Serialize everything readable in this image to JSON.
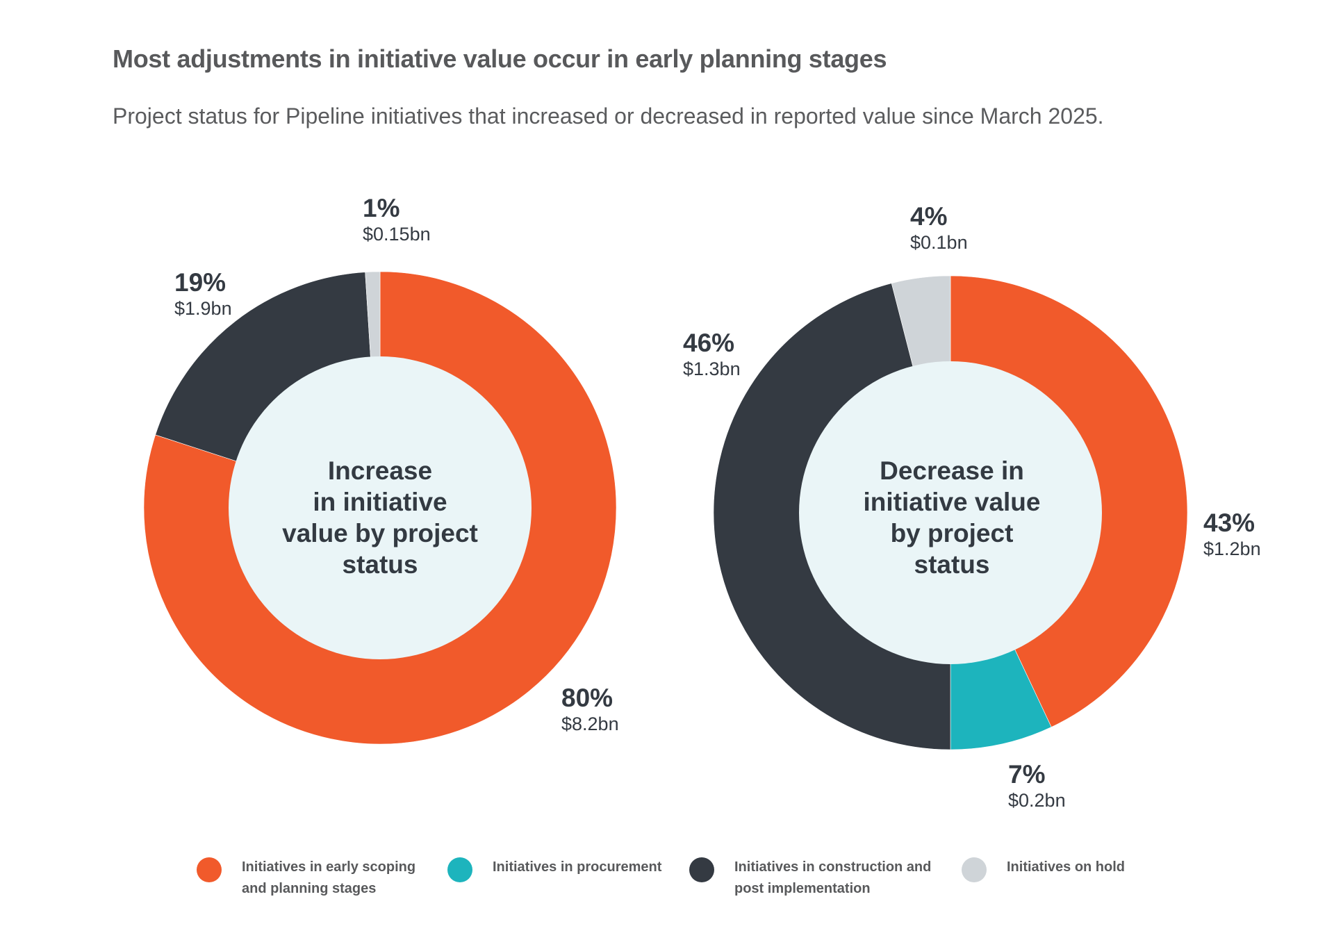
{
  "header": {
    "title": "Most adjustments in initiative value occur in early planning stages",
    "subtitle": "Project status for Pipeline initiatives that increased or decreased in reported value since March 2025."
  },
  "colors": {
    "early_scoping": "#F15A2B",
    "procurement": "#1DB4BD",
    "construction": "#343A42",
    "on_hold": "#CFD4D8",
    "center_fill": "#EAF5F7"
  },
  "chart_data": [
    {
      "type": "pie",
      "variant": "donut",
      "center_label": [
        "Increase",
        "in initiative",
        "value by project",
        "status"
      ],
      "start": "top",
      "direction": "clockwise",
      "slices": [
        {
          "category": "Initiatives in early scoping and planning stages",
          "key": "early_scoping",
          "percent": 80,
          "percent_label": "80%",
          "value_label": "$8.2bn",
          "value_bn": 8.2
        },
        {
          "category": "Initiatives in construction and post implementation",
          "key": "construction",
          "percent": 19,
          "percent_label": "19%",
          "value_label": "$1.9bn",
          "value_bn": 1.9
        },
        {
          "category": "Initiatives on hold",
          "key": "on_hold",
          "percent": 1,
          "percent_label": "1%",
          "value_label": "$0.15bn",
          "value_bn": 0.15
        }
      ]
    },
    {
      "type": "pie",
      "variant": "donut",
      "center_label": [
        "Decrease in",
        "initiative value",
        "by project",
        "status"
      ],
      "start": "top",
      "direction": "clockwise",
      "slices": [
        {
          "category": "Initiatives in early scoping and planning stages",
          "key": "early_scoping",
          "percent": 43,
          "percent_label": "43%",
          "value_label": "$1.2bn",
          "value_bn": 1.2
        },
        {
          "category": "Initiatives in procurement",
          "key": "procurement",
          "percent": 7,
          "percent_label": "7%",
          "value_label": "$0.2bn",
          "value_bn": 0.2
        },
        {
          "category": "Initiatives in construction and post implementation",
          "key": "construction",
          "percent": 46,
          "percent_label": "46%",
          "value_label": "$1.3bn",
          "value_bn": 1.3
        },
        {
          "category": "Initiatives on hold",
          "key": "on_hold",
          "percent": 4,
          "percent_label": "4%",
          "value_label": "$0.1bn",
          "value_bn": 0.1
        }
      ]
    }
  ],
  "legend": {
    "items": [
      {
        "key": "early_scoping",
        "label": "Initiatives in early scoping and planning stages"
      },
      {
        "key": "procurement",
        "label": "Initiatives in procurement"
      },
      {
        "key": "construction",
        "label": "Initiatives in construction and post implementation"
      },
      {
        "key": "on_hold",
        "label": "Initiatives on hold"
      }
    ]
  }
}
